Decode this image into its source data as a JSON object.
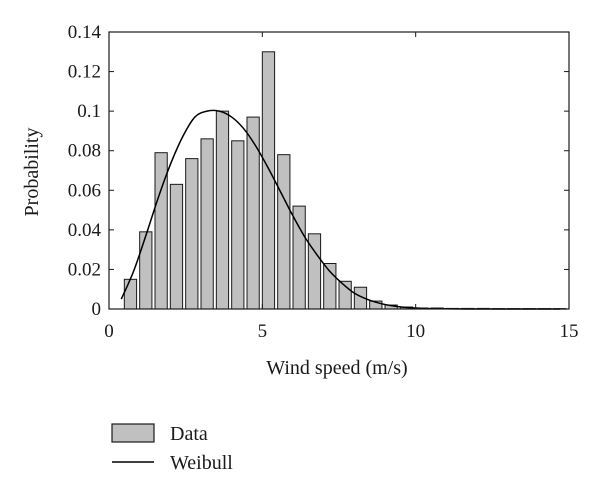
{
  "chart_data": {
    "type": "bar",
    "xlabel": "Wind speed (m/s)",
    "ylabel": "Probability",
    "xlim": [
      0,
      15
    ],
    "ylim": [
      0,
      0.14
    ],
    "xticks": [
      "0",
      "5",
      "10",
      "15"
    ],
    "yticks": [
      "0",
      "0.02",
      "0.04",
      "0.06",
      "0.08",
      "0.1",
      "0.12",
      "0.14"
    ],
    "grid": false,
    "legend_position": "bottom-left",
    "bar_width": 0.4,
    "bar_color": "#c0c0c0",
    "line_color": "#000000",
    "series": [
      {
        "name": "Data",
        "kind": "bar",
        "x": [
          0.7,
          1.2,
          1.7,
          2.2,
          2.7,
          3.2,
          3.7,
          4.2,
          4.7,
          5.2,
          5.7,
          6.2,
          6.7,
          7.2,
          7.7,
          8.2,
          8.7,
          9.2,
          9.7,
          10.2,
          10.7,
          11.2,
          11.7,
          12.2,
          12.7,
          13.2,
          13.7,
          14.2,
          14.7
        ],
        "values": [
          0.015,
          0.039,
          0.079,
          0.063,
          0.076,
          0.086,
          0.1,
          0.085,
          0.097,
          0.13,
          0.078,
          0.052,
          0.038,
          0.023,
          0.014,
          0.011,
          0.004,
          0.002,
          0.001,
          0.0005,
          0.0005,
          0.0003,
          0.0003,
          0.0003,
          0.0002,
          0.0002,
          0.0002,
          0.0002,
          0.0002
        ]
      },
      {
        "name": "Weibull",
        "kind": "line",
        "x": [
          0.4,
          0.8,
          1.2,
          1.6,
          2.0,
          2.4,
          2.8,
          3.2,
          3.6,
          4.0,
          4.4,
          4.8,
          5.2,
          5.6,
          6.0,
          6.4,
          6.8,
          7.2,
          7.6,
          8.0,
          8.4,
          8.8,
          9.2,
          9.6,
          10.0,
          10.5,
          11.0,
          12.0,
          13.0,
          14.0,
          14.7
        ],
        "values": [
          0.005,
          0.019,
          0.037,
          0.056,
          0.073,
          0.087,
          0.097,
          0.1,
          0.1,
          0.097,
          0.091,
          0.082,
          0.071,
          0.059,
          0.047,
          0.036,
          0.027,
          0.019,
          0.013,
          0.008,
          0.005,
          0.003,
          0.0017,
          0.0009,
          0.0005,
          0.0002,
          0.0001,
          0,
          0,
          0,
          0
        ]
      }
    ]
  }
}
